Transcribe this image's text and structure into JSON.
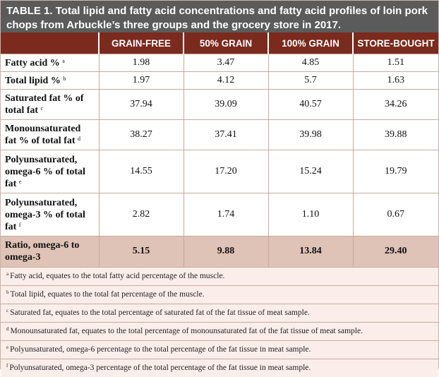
{
  "title": {
    "label": "TABLE 1.",
    "text": "Total lipid and fatty acid concentrations and fatty acid profiles of loin pork chops from Arbuckle’s three groups and the grocery store in 2017."
  },
  "headers": [
    "",
    "GRAIN-FREE",
    "50% GRAIN",
    "100% GRAIN",
    "STORE-BOUGHT"
  ],
  "rows": [
    {
      "label": "Fatty acid %",
      "mark": "a",
      "values": [
        "1.98",
        "3.47",
        "4.85",
        "1.51"
      ]
    },
    {
      "label": "Total lipid %",
      "mark": "b",
      "values": [
        "1.97",
        "4.12",
        "5.7",
        "1.63"
      ]
    },
    {
      "label": "Saturated fat % of total fat",
      "mark": "c",
      "values": [
        "37.94",
        "39.09",
        "40.57",
        "34.26"
      ]
    },
    {
      "label": "Monounsaturated fat % of total fat",
      "mark": "d",
      "values": [
        "38.27",
        "37.41",
        "39.98",
        "39.88"
      ]
    },
    {
      "label": "Polyunsaturated, omega-6 % of total fat",
      "mark": "e",
      "values": [
        "14.55",
        "17.20",
        "15.24",
        "19.79"
      ]
    },
    {
      "label": "Polyunsaturated, omega-3 % of total fat",
      "mark": "f",
      "values": [
        "2.82",
        "1.74",
        "1.10",
        "0.67"
      ]
    },
    {
      "label": "Ratio, omega-6 to omega-3",
      "mark": "",
      "values": [
        "5.15",
        "9.88",
        "13.84",
        "29.40"
      ]
    }
  ],
  "footnotes": [
    {
      "mark": "a",
      "text": "Fatty acid, equates to the total fatty acid percentage of the muscle."
    },
    {
      "mark": "b",
      "text": "Total lipid, equates to the total fat percentage of the muscle."
    },
    {
      "mark": "c",
      "text": "Saturated fat, equates to the total percentage of saturated fat of the fat tissue of meat sample."
    },
    {
      "mark": "d",
      "text": "Monounsaturated fat, equates to the total percentage of monounsaturated fat of the fat tissue of meat sample."
    },
    {
      "mark": "e",
      "text": "Polyunsaturated, omega-6 percentage to the total percentage of the fat tissue in meat sample."
    },
    {
      "mark": "f",
      "text": "Polyunsaturated, omega-3 percentage of the total percentage of the fat tissue in meat sample."
    }
  ],
  "colors": {
    "title_bg": "#5b5b5b",
    "header_bg": "#7b2a1e",
    "ratio_row_bg": "#dfc3b6",
    "footnote_bg": "#fbeeea"
  }
}
